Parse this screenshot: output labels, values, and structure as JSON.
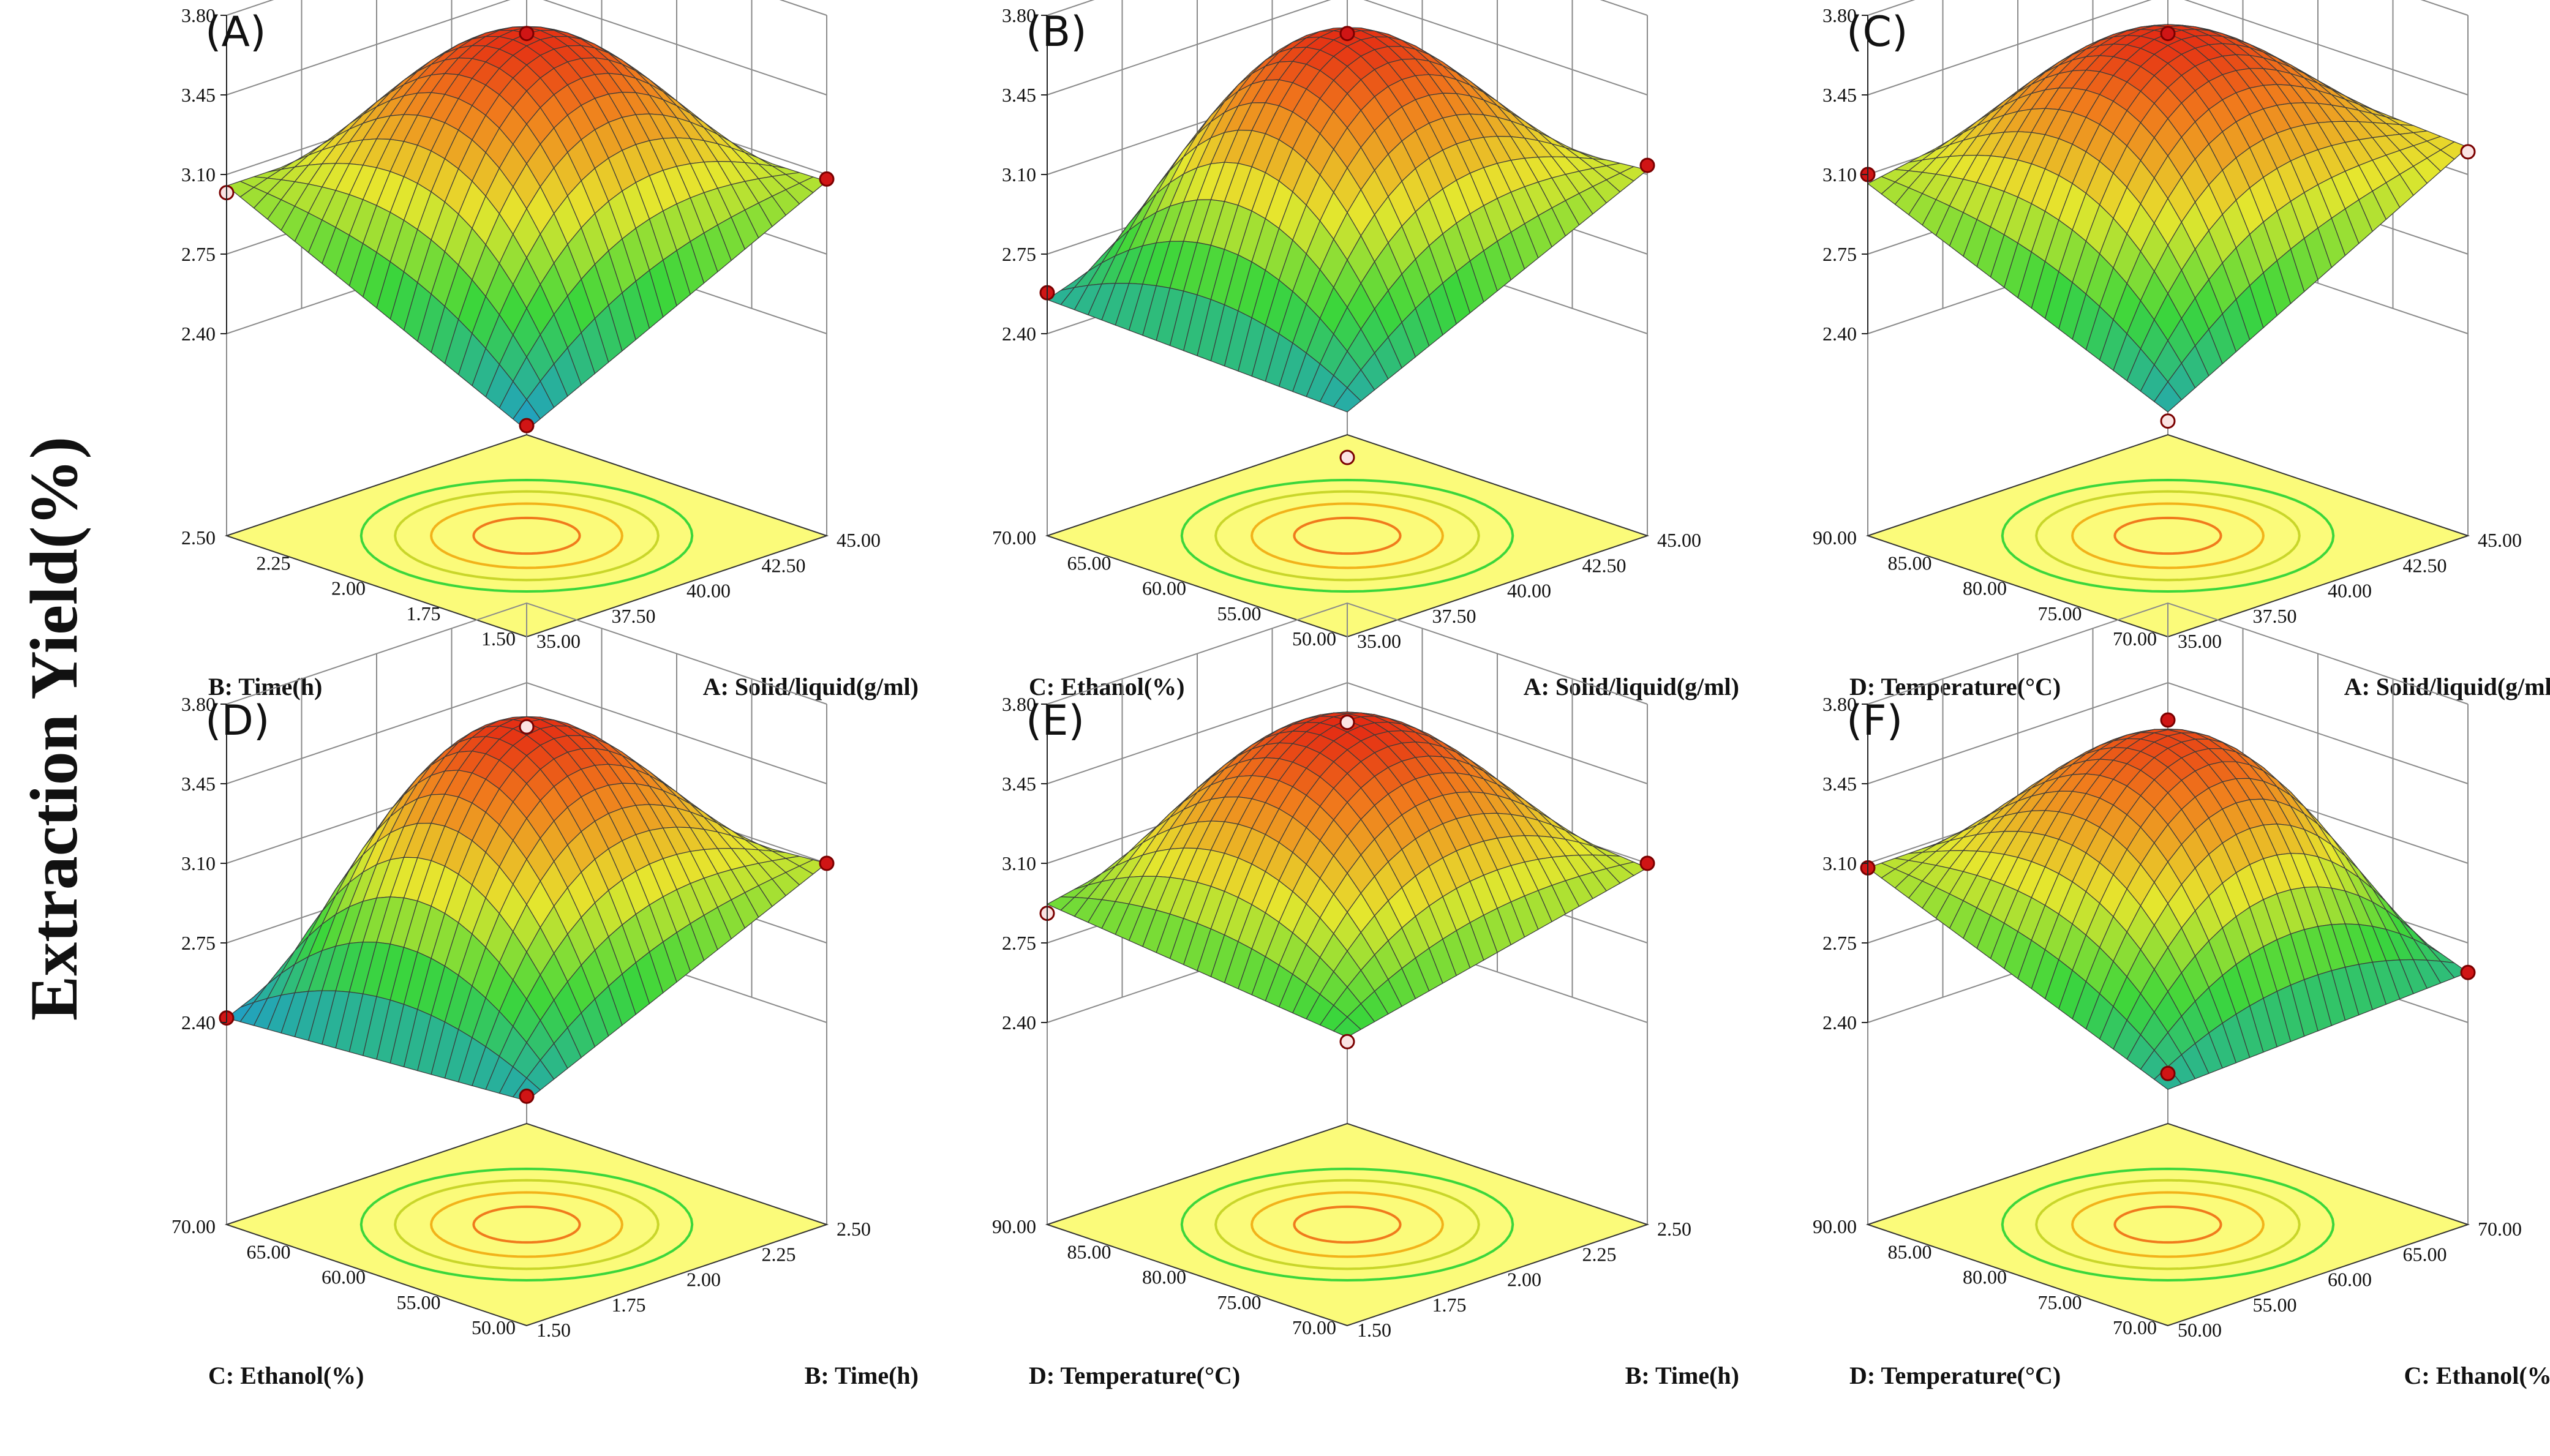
{
  "figure": {
    "ylabel": "Extraction Yield(%)",
    "colors": {
      "low": "#1e9bd0",
      "mid_low": "#3bd63b",
      "mid": "#e6e62e",
      "high": "#f07a1c",
      "top": "#e01010",
      "floor": "#fbfb7a",
      "grid": "#8a8a8a"
    }
  },
  "chart_data": [
    {
      "type": "surface",
      "panel": "(A)",
      "zlabel": "Extraction Yield(%)",
      "zticks": [
        "2.40",
        "2.75",
        "3.10",
        "3.45",
        "3.80"
      ],
      "zlim": [
        2.4,
        3.8
      ],
      "left_axis": {
        "label": "B: Time(h)",
        "ticks": [
          "1.50",
          "1.75",
          "2.00",
          "2.25",
          "2.50"
        ],
        "range": [
          1.5,
          2.5
        ]
      },
      "right_axis": {
        "label": "A: Solid/liquid(g/ml)",
        "ticks": [
          "35.00",
          "37.50",
          "40.00",
          "42.50",
          "45.00"
        ],
        "range": [
          35,
          45
        ]
      },
      "surface": {
        "max": 3.72,
        "near_corner": 2.42,
        "left_corner": 3.05,
        "right_corner": 3.07,
        "far_corner": 3.05
      },
      "points": [
        3.72,
        3.02,
        3.08,
        2.44
      ]
    },
    {
      "type": "surface",
      "panel": "(B)",
      "zlabel": "Extraction Yield(%)",
      "zticks": [
        "2.40",
        "2.75",
        "3.10",
        "3.45",
        "3.80"
      ],
      "zlim": [
        2.4,
        3.8
      ],
      "left_axis": {
        "label": "C: Ethanol(%)",
        "ticks": [
          "50.00",
          "55.00",
          "60.00",
          "65.00",
          "70.00"
        ],
        "range": [
          50,
          70
        ]
      },
      "right_axis": {
        "label": "A: Solid/liquid(g/ml)",
        "ticks": [
          "35.00",
          "37.50",
          "40.00",
          "42.50",
          "45.00"
        ],
        "range": [
          35,
          45
        ]
      },
      "surface": {
        "max": 3.72,
        "near_corner": 2.5,
        "left_corner": 2.55,
        "right_corner": 3.12,
        "far_corner": 3.0
      },
      "points": [
        3.72,
        2.58,
        3.14,
        2.3
      ]
    },
    {
      "type": "surface",
      "panel": "(C)",
      "zlabel": "Extraction Yield(%)",
      "zticks": [
        "2.40",
        "2.75",
        "3.10",
        "3.45",
        "3.80"
      ],
      "zlim": [
        2.4,
        3.8
      ],
      "left_axis": {
        "label": "D: Temperature(°C)",
        "ticks": [
          "70.00",
          "75.00",
          "80.00",
          "85.00",
          "90.00"
        ],
        "range": [
          70,
          90
        ]
      },
      "right_axis": {
        "label": "A: Solid/liquid(g/ml)",
        "ticks": [
          "35.00",
          "37.50",
          "40.00",
          "42.50",
          "45.00"
        ],
        "range": [
          35,
          45
        ]
      },
      "surface": {
        "max": 3.72,
        "near_corner": 2.5,
        "left_corner": 3.06,
        "right_corner": 3.22,
        "far_corner": 3.3
      },
      "points": [
        3.72,
        3.1,
        3.2,
        2.46
      ]
    },
    {
      "type": "surface",
      "panel": "(D)",
      "zlabel": "Extraction Yield(%)",
      "zticks": [
        "2.40",
        "2.75",
        "3.10",
        "3.45",
        "3.80"
      ],
      "zlim": [
        2.4,
        3.8
      ],
      "left_axis": {
        "label": "C: Ethanol(%)",
        "ticks": [
          "50.00",
          "55.00",
          "60.00",
          "65.00",
          "70.00"
        ],
        "range": [
          50,
          70
        ]
      },
      "right_axis": {
        "label": "B: Time(h)",
        "ticks": [
          "1.50",
          "1.75",
          "2.00",
          "2.25",
          "2.50"
        ],
        "range": [
          1.5,
          2.5
        ]
      },
      "surface": {
        "max": 3.72,
        "near_corner": 2.5,
        "left_corner": 2.42,
        "right_corner": 3.1,
        "far_corner": 3.0
      },
      "points": [
        3.7,
        2.42,
        3.1,
        2.52
      ]
    },
    {
      "type": "surface",
      "panel": "(E)",
      "zlabel": "Extraction Yield(%)",
      "zticks": [
        "2.40",
        "2.75",
        "3.10",
        "3.45",
        "3.80"
      ],
      "zlim": [
        2.4,
        3.8
      ],
      "left_axis": {
        "label": "D: Temperature(°C)",
        "ticks": [
          "70.00",
          "75.00",
          "80.00",
          "85.00",
          "90.00"
        ],
        "range": [
          70,
          90
        ]
      },
      "right_axis": {
        "label": "B: Time(h)",
        "ticks": [
          "1.50",
          "1.75",
          "2.00",
          "2.25",
          "2.50"
        ],
        "range": [
          1.5,
          2.5
        ]
      },
      "surface": {
        "max": 3.73,
        "near_corner": 2.78,
        "left_corner": 2.92,
        "right_corner": 3.08,
        "far_corner": 3.2
      },
      "points": [
        3.72,
        2.88,
        3.1,
        2.76
      ]
    },
    {
      "type": "surface",
      "panel": "(F)",
      "zlabel": "Extraction Yield(%)",
      "zticks": [
        "2.40",
        "2.75",
        "3.10",
        "3.45",
        "3.80"
      ],
      "zlim": [
        2.4,
        3.8
      ],
      "left_axis": {
        "label": "D: Temperature(°C)",
        "ticks": [
          "70.00",
          "75.00",
          "80.00",
          "85.00",
          "90.00"
        ],
        "range": [
          70,
          90
        ]
      },
      "right_axis": {
        "label": "C: Ethanol(%)",
        "ticks": [
          "50.00",
          "55.00",
          "60.00",
          "65.00",
          "70.00"
        ],
        "range": [
          50,
          70
        ]
      },
      "surface": {
        "max": 3.66,
        "near_corner": 2.55,
        "left_corner": 3.08,
        "right_corner": 2.62,
        "far_corner": 3.1
      },
      "points": [
        3.73,
        3.08,
        2.62,
        2.62
      ]
    }
  ]
}
